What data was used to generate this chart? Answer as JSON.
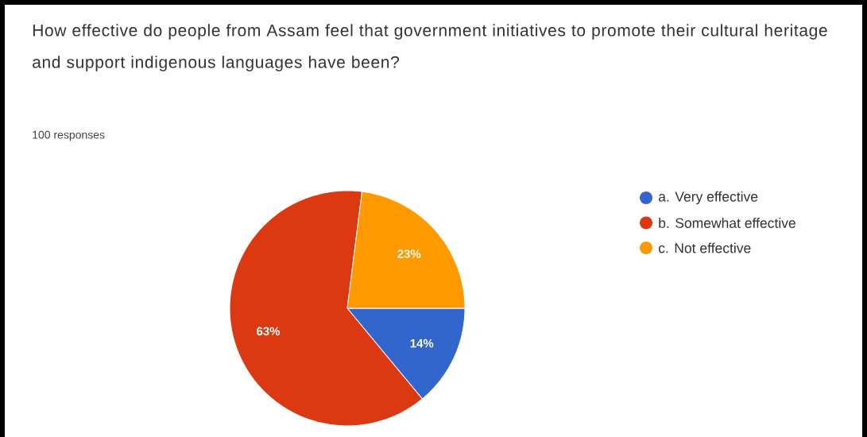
{
  "chart_data": {
    "type": "pie",
    "title": "How effective do people from Assam feel that government initiatives to promote their cultural heritage and support indigenous languages have been?",
    "subtitle": "100 responses",
    "categories": [
      "a. Very effective",
      "b. Somewhat effective",
      "c. Not effective"
    ],
    "values": [
      14,
      63,
      23
    ],
    "colors": [
      "#3366cc",
      "#dc3912",
      "#ff9900"
    ],
    "value_labels": [
      "14%",
      "63%",
      "23%"
    ],
    "legend": "right",
    "marker": "circle"
  }
}
